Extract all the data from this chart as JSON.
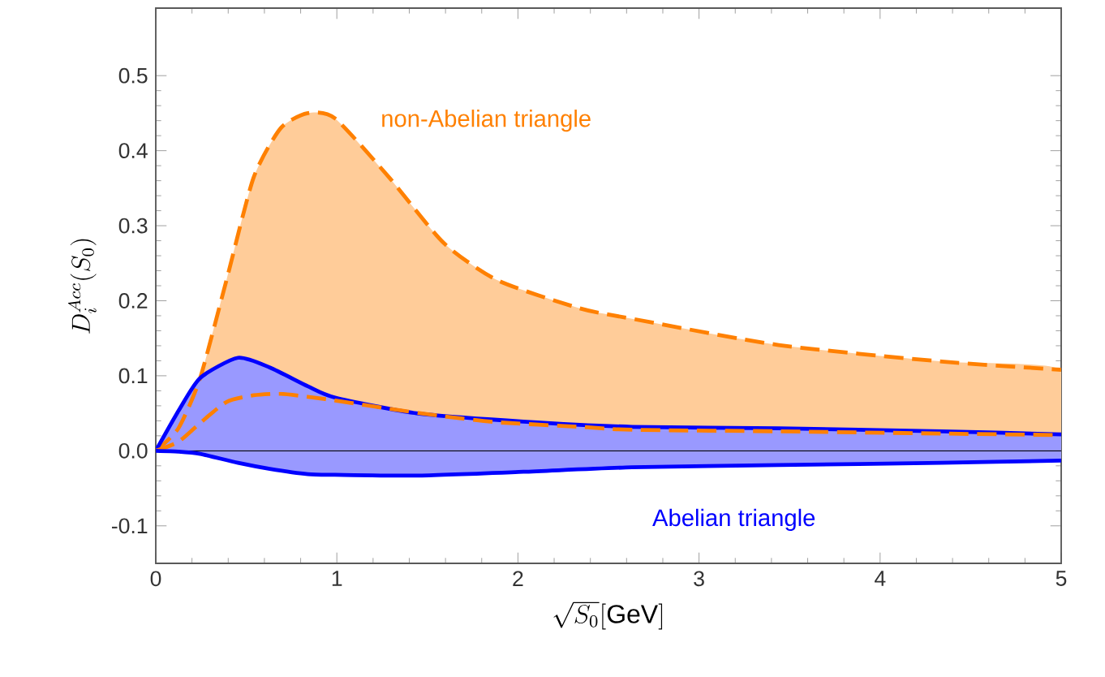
{
  "chart_data": {
    "type": "line",
    "xlabel": "\\sqrt{S_0}[\\mathrm{GeV}]",
    "ylabel": "D_i^{Acc}(S_0)",
    "xlim": [
      0,
      5
    ],
    "ylim": [
      -0.15,
      0.59
    ],
    "xticks": [
      0,
      1,
      2,
      3,
      4,
      5
    ],
    "yticks": [
      {
        "value": -0.1,
        "label": "-0.1"
      },
      {
        "value": 0,
        "label": "0.0"
      },
      {
        "value": 0.1,
        "label": "0.1"
      },
      {
        "value": 0.2,
        "label": "0.2"
      },
      {
        "value": 0.3,
        "label": "0.3"
      },
      {
        "value": 0.4,
        "label": "0.4"
      },
      {
        "value": 0.5,
        "label": "0.5"
      }
    ],
    "grid": false,
    "ref_lines": [
      {
        "axis": "y",
        "value": 0,
        "color": "#000000"
      }
    ],
    "series": [
      {
        "name": "non-Abelian triangle",
        "color": "#ff8000",
        "line_style": "dashed",
        "x": [
          0,
          0.125,
          0.245,
          0.39,
          0.54,
          0.69,
          0.84,
          0.99,
          1.29,
          1.59,
          1.89,
          2.34,
          2.63,
          3.44,
          4.34,
          5
        ],
        "values": [
          0,
          0.03,
          0.097,
          0.227,
          0.364,
          0.43,
          0.45,
          0.443,
          0.364,
          0.277,
          0.227,
          0.19,
          0.176,
          0.141,
          0.119,
          0.108
        ],
        "upper": [
          0,
          0.03,
          0.097,
          0.227,
          0.364,
          0.43,
          0.45,
          0.443,
          0.364,
          0.277,
          0.227,
          0.19,
          0.176,
          0.141,
          0.119,
          0.108
        ],
        "lower": [
          0,
          0.012,
          0.037,
          0.065,
          0.074,
          0.076,
          0.072,
          0.067,
          0.056,
          0.046,
          0.038,
          0.032,
          0.028,
          0.026,
          0.023,
          0.021
        ]
      },
      {
        "name": "Abelian triangle",
        "color": "#0000ff",
        "line_style": "solid",
        "x": [
          0,
          0.125,
          0.245,
          0.454,
          0.63,
          0.84,
          0.99,
          1.44,
          2.03,
          2.63,
          3.44,
          4.34,
          5
        ],
        "values": [
          0,
          0.053,
          0.097,
          0.124,
          0.111,
          0.086,
          0.071,
          0.05,
          0.039,
          0.032,
          0.03,
          0.026,
          0.022
        ],
        "upper": [
          0,
          0.053,
          0.097,
          0.124,
          0.111,
          0.086,
          0.071,
          0.05,
          0.039,
          0.032,
          0.03,
          0.026,
          0.022
        ],
        "lower": [
          0,
          -0.001,
          -0.004,
          -0.016,
          -0.024,
          -0.031,
          -0.032,
          -0.033,
          -0.028,
          -0.022,
          -0.019,
          -0.016,
          -0.013
        ]
      },
      {
        "color": "#ff8000",
        "line_style": "dashed",
        "x": [
          0,
          0.125,
          0.245,
          0.39,
          0.54,
          0.69,
          0.84,
          0.99,
          1.29,
          1.59,
          1.89,
          2.34,
          2.63,
          3.44,
          4.34,
          5
        ],
        "values": [
          0,
          0.012,
          0.037,
          0.065,
          0.074,
          0.076,
          0.072,
          0.067,
          0.056,
          0.046,
          0.038,
          0.032,
          0.028,
          0.026,
          0.023,
          0.021
        ]
      },
      {
        "color": "#0000ff",
        "line_style": "solid",
        "x": [
          0,
          0.125,
          0.245,
          0.454,
          0.63,
          0.84,
          0.99,
          1.44,
          2.03,
          2.63,
          3.44,
          4.34,
          5
        ],
        "values": [
          0,
          -0.001,
          -0.004,
          -0.016,
          -0.024,
          -0.031,
          -0.032,
          -0.033,
          -0.028,
          -0.022,
          -0.019,
          -0.016,
          -0.013
        ]
      }
    ]
  }
}
